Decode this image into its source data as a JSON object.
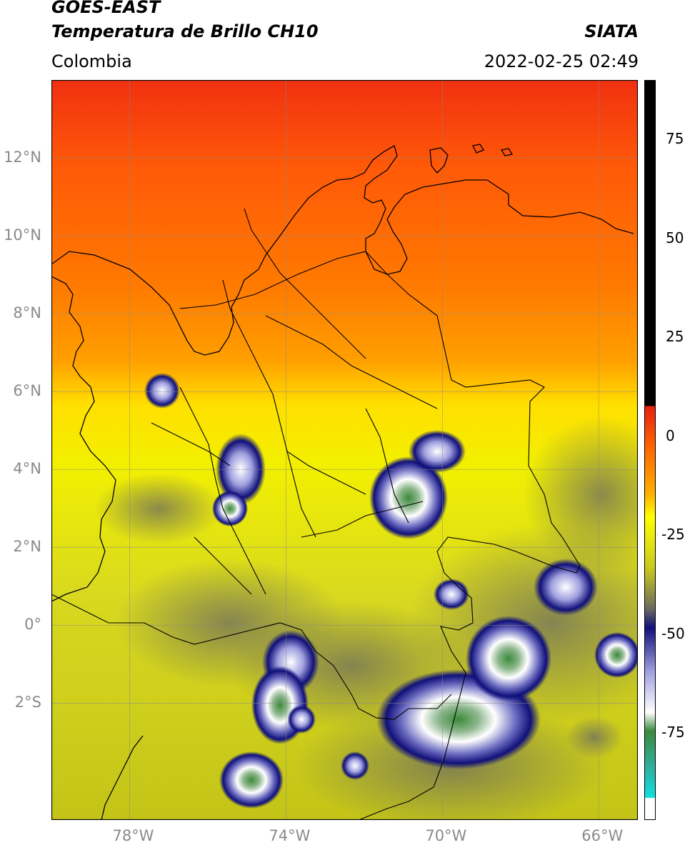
{
  "header": {
    "satellite": "GOES-EAST",
    "product": "Temperatura de Brillo CH10",
    "agency": "SIATA",
    "region": "Colombia",
    "datetime": "2022-02-25 02:49"
  },
  "map": {
    "lat_labels": [
      "12°N",
      "10°N",
      "8°N",
      "6°N",
      "4°N",
      "2°N",
      "0°",
      "2°S"
    ],
    "lon_labels": [
      "78°W",
      "74°W",
      "70°W",
      "66°W"
    ],
    "lat_values": [
      12,
      10,
      8,
      6,
      4,
      2,
      0,
      -2
    ],
    "lon_values": [
      -78,
      -74,
      -70,
      -66
    ],
    "lon_range": [
      -80,
      -65
    ],
    "lat_range": [
      -5,
      14
    ]
  },
  "colorbar": {
    "tick_labels": [
      "75",
      "50",
      "25",
      "0",
      "-25",
      "-50",
      "-75"
    ],
    "tick_values": [
      75,
      50,
      25,
      0,
      -25,
      -50,
      -75
    ],
    "range": [
      -97,
      90
    ],
    "colors": {
      "warm_top": "#000000",
      "red": "#e83010",
      "orange": "#ff7a00",
      "yellow": "#ffff00",
      "olive": "#b8b820",
      "gray": "#6a6a60",
      "navy": "#10107a",
      "white": "#ffffff",
      "green": "#3a8a3a",
      "cyan": "#10e0e0"
    }
  }
}
